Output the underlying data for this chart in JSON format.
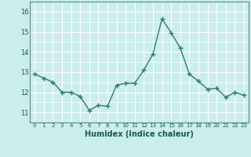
{
  "x": [
    0,
    1,
    2,
    3,
    4,
    5,
    6,
    7,
    8,
    9,
    10,
    11,
    12,
    13,
    14,
    15,
    16,
    17,
    18,
    19,
    20,
    21,
    22,
    23
  ],
  "y": [
    12.9,
    12.7,
    12.5,
    12.0,
    12.0,
    11.8,
    11.1,
    11.35,
    11.3,
    12.35,
    12.45,
    12.45,
    13.1,
    13.9,
    15.65,
    14.95,
    14.2,
    12.9,
    12.55,
    12.15,
    12.2,
    11.75,
    12.0,
    11.85
  ],
  "line_color": "#2a7d6e",
  "marker": "+",
  "marker_size": 4,
  "marker_linewidth": 1.0,
  "line_width": 1.0,
  "xlabel": "Humidex (Indice chaleur)",
  "xlabel_fontsize": 7,
  "xlim": [
    -0.5,
    23.5
  ],
  "ylim": [
    10.5,
    16.5
  ],
  "yticks": [
    11,
    12,
    13,
    14,
    15,
    16
  ],
  "ytick_fontsize": 6,
  "xticks": [
    0,
    1,
    2,
    3,
    4,
    5,
    6,
    7,
    8,
    9,
    10,
    11,
    12,
    13,
    14,
    15,
    16,
    17,
    18,
    19,
    20,
    21,
    22,
    23
  ],
  "xtick_labels": [
    "0",
    "1",
    "2",
    "3",
    "4",
    "5",
    "6",
    "7",
    "8",
    "9",
    "10",
    "11",
    "12",
    "13",
    "14",
    "15",
    "16",
    "17",
    "18",
    "19",
    "20",
    "21",
    "22",
    "23"
  ],
  "xtick_fontsize": 5,
  "background_color": "#caeeed",
  "grid_color": "#ffffff",
  "spine_color": "#5a8a80",
  "label_color": "#1a5a4a",
  "tick_color": "#1a5a4a"
}
